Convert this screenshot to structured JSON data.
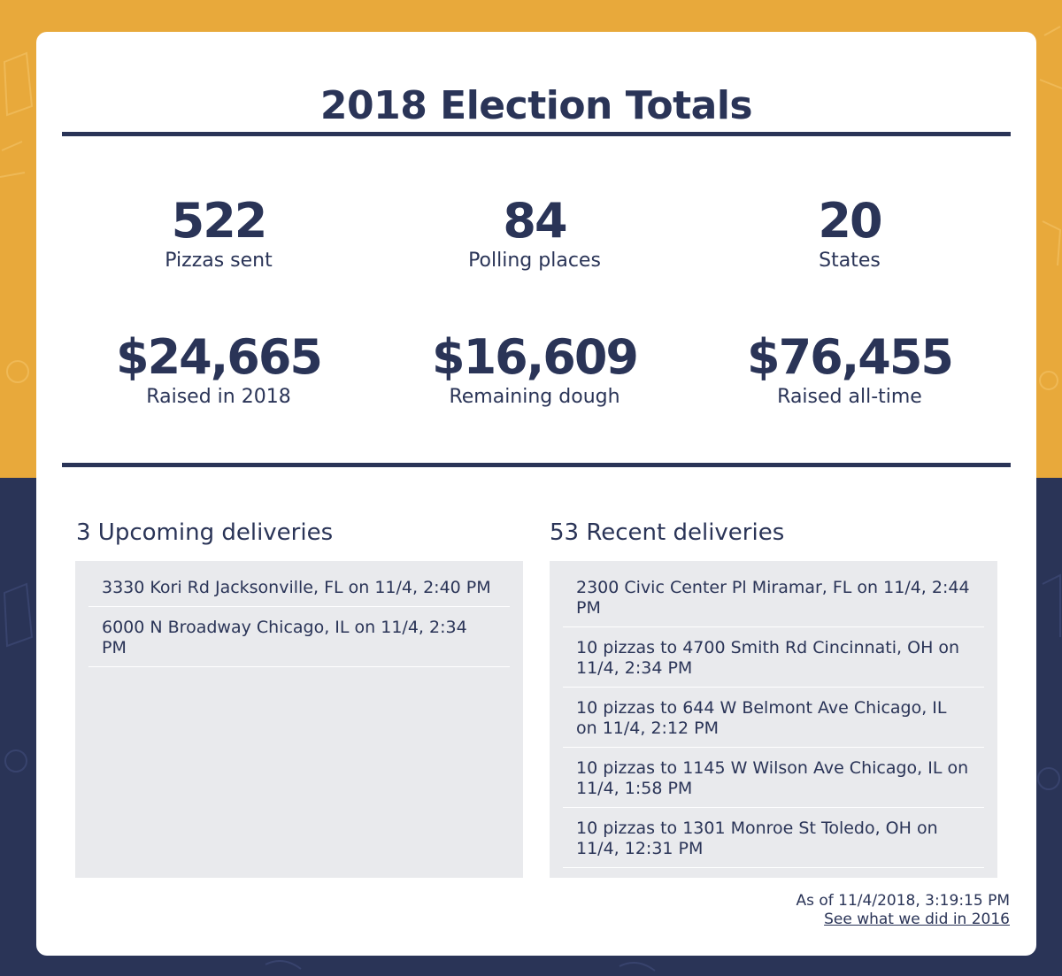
{
  "title": "2018 Election Totals",
  "stats": [
    {
      "value": "522",
      "label": "Pizzas sent"
    },
    {
      "value": "84",
      "label": "Polling places"
    },
    {
      "value": "20",
      "label": "States"
    },
    {
      "value": "$24,665",
      "label": "Raised in 2018"
    },
    {
      "value": "$16,609",
      "label": "Remaining dough"
    },
    {
      "value": "$76,455",
      "label": "Raised all-time"
    }
  ],
  "upcoming": {
    "heading": "3 Upcoming deliveries",
    "items": [
      "3330 Kori Rd Jacksonville, FL on 11/4, 2:40 PM",
      "6000 N Broadway Chicago, IL on 11/4, 2:34 PM"
    ]
  },
  "recent": {
    "heading": "53 Recent deliveries",
    "items": [
      "2300 Civic Center Pl Miramar, FL on 11/4, 2:44 PM",
      "10 pizzas to 4700 Smith Rd Cincinnati, OH on 11/4, 2:34 PM",
      "10 pizzas to 644 W Belmont Ave Chicago, IL on 11/4, 2:12 PM",
      "10 pizzas to 1145 W Wilson Ave Chicago, IL on 11/4, 1:58 PM",
      "10 pizzas to 1301 Monroe St Toledo, OH on 11/4, 12:31 PM"
    ]
  },
  "footer": {
    "as_of": "As of 11/4/2018, 3:19:15 PM",
    "link": "See what we did in 2016"
  },
  "colors": {
    "navy": "#2a3457",
    "mustard": "#e8a93b",
    "panel": "#e9eaed"
  }
}
